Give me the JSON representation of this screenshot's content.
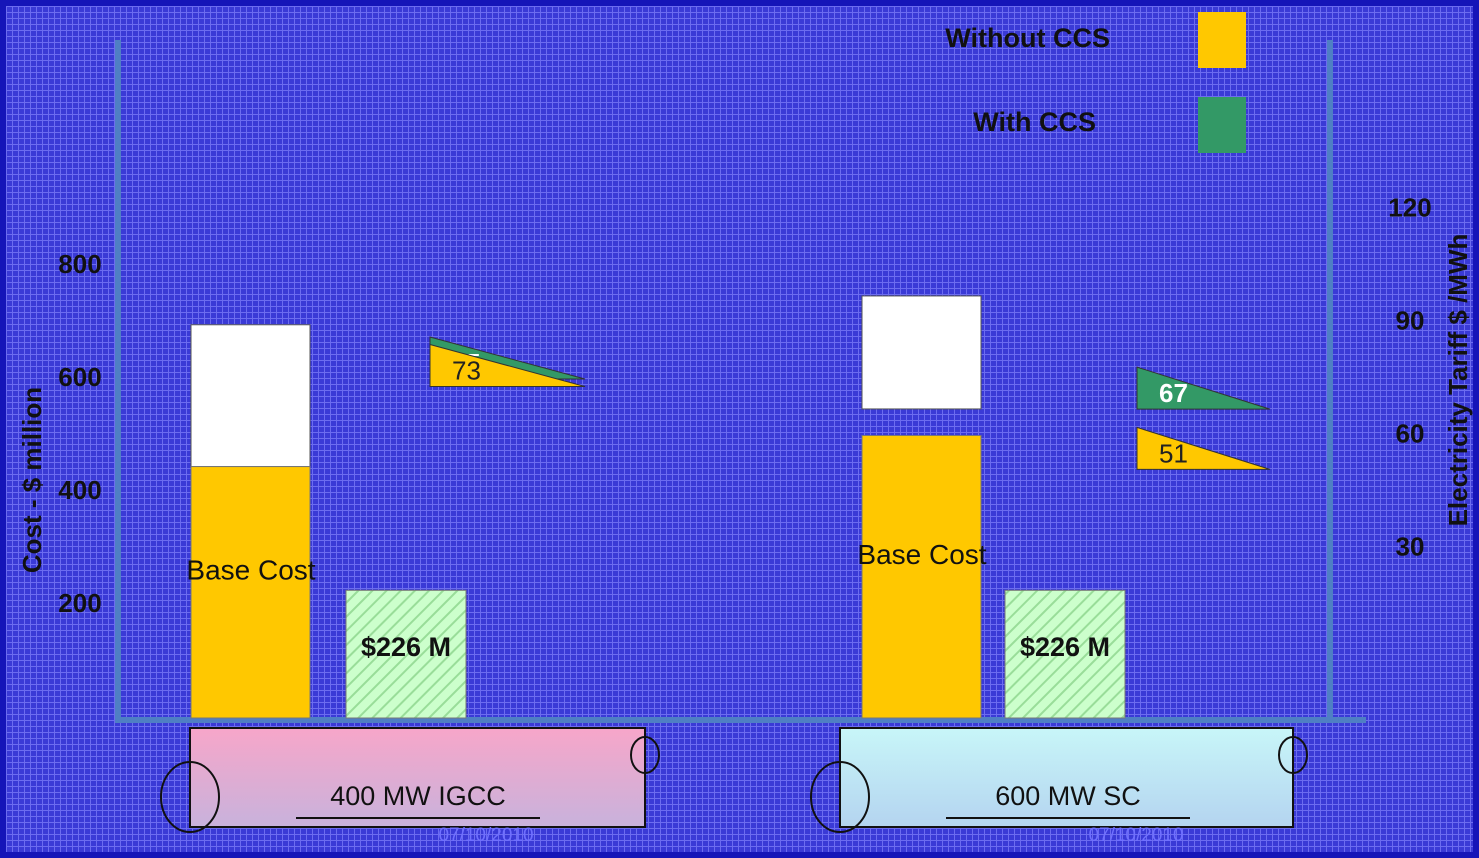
{
  "chart_data": {
    "type": "bar",
    "categories": [
      "400 MW IGCC",
      "600 MW SC"
    ],
    "date": "07/10/2010",
    "ylabel": "Cost - $ million",
    "y2label": "Electricity Tariff $ /MWh",
    "ylim": [
      0,
      1200
    ],
    "yticks": [
      200,
      400,
      600,
      800
    ],
    "y2lim": [
      -15,
      165
    ],
    "y2ticks": [
      30,
      60,
      90,
      120
    ],
    "series": [
      {
        "name": "Base Cost",
        "color": "#ffc800",
        "values": [
          445,
          500
        ]
      },
      {
        "color": "#ffffff",
        "values": [
          [
            445,
            696
          ],
          [
            547,
            747
          ]
        ]
      },
      {
        "color": "#ccffcc",
        "values": [
          226,
          226
        ],
        "value_labels": [
          "$226 M",
          "$226 M"
        ]
      },
      {
        "name": "Without CCS",
        "color": "#ffc800",
        "values": [
          73,
          51
        ],
        "axis": "y2"
      },
      {
        "name": "With CCS",
        "color": "#339966",
        "values": [
          75,
          67
        ],
        "axis": "y2"
      }
    ]
  }
}
